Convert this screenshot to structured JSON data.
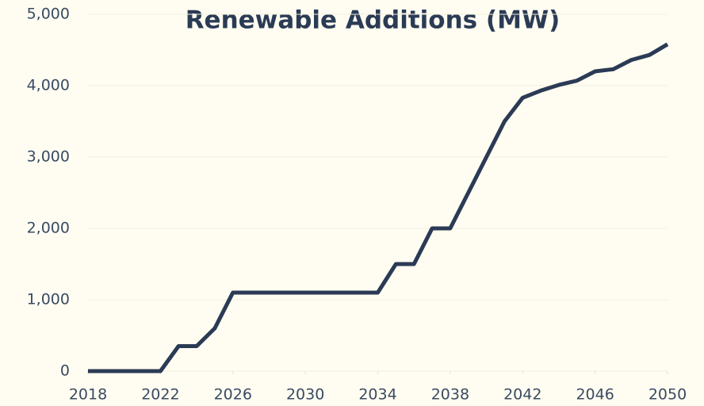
{
  "chart_data": {
    "type": "line",
    "title": "Renewable Additions (MW)",
    "x": [
      2018,
      2019,
      2020,
      2021,
      2022,
      2023,
      2024,
      2025,
      2026,
      2027,
      2028,
      2029,
      2030,
      2031,
      2032,
      2033,
      2034,
      2035,
      2036,
      2037,
      2038,
      2039,
      2040,
      2041,
      2042,
      2043,
      2044,
      2045,
      2046,
      2047,
      2048,
      2049,
      2050
    ],
    "series": [
      {
        "name": "Renewable Additions",
        "color": "#2b3b55",
        "values": [
          0,
          0,
          0,
          0,
          0,
          350,
          350,
          600,
          1100,
          1100,
          1100,
          1100,
          1100,
          1100,
          1100,
          1100,
          1100,
          1500,
          1500,
          2000,
          2000,
          2500,
          3000,
          3500,
          3830,
          3930,
          4010,
          4070,
          4200,
          4230,
          4360,
          4430,
          4580
        ]
      }
    ],
    "xlim": [
      2018,
      2050
    ],
    "xticks": [
      2018,
      2022,
      2026,
      2030,
      2034,
      2038,
      2042,
      2046,
      2050
    ],
    "ylim": [
      0,
      5000
    ],
    "yticks": [
      0,
      {
        "value": 1000,
        "label": "1,000"
      },
      {
        "value": 2000,
        "label": "2,000"
      },
      {
        "value": 3000,
        "label": "3,000"
      },
      {
        "value": 4000,
        "label": "4,000"
      },
      {
        "value": 5000,
        "label": "5,000"
      }
    ],
    "grid": true
  }
}
